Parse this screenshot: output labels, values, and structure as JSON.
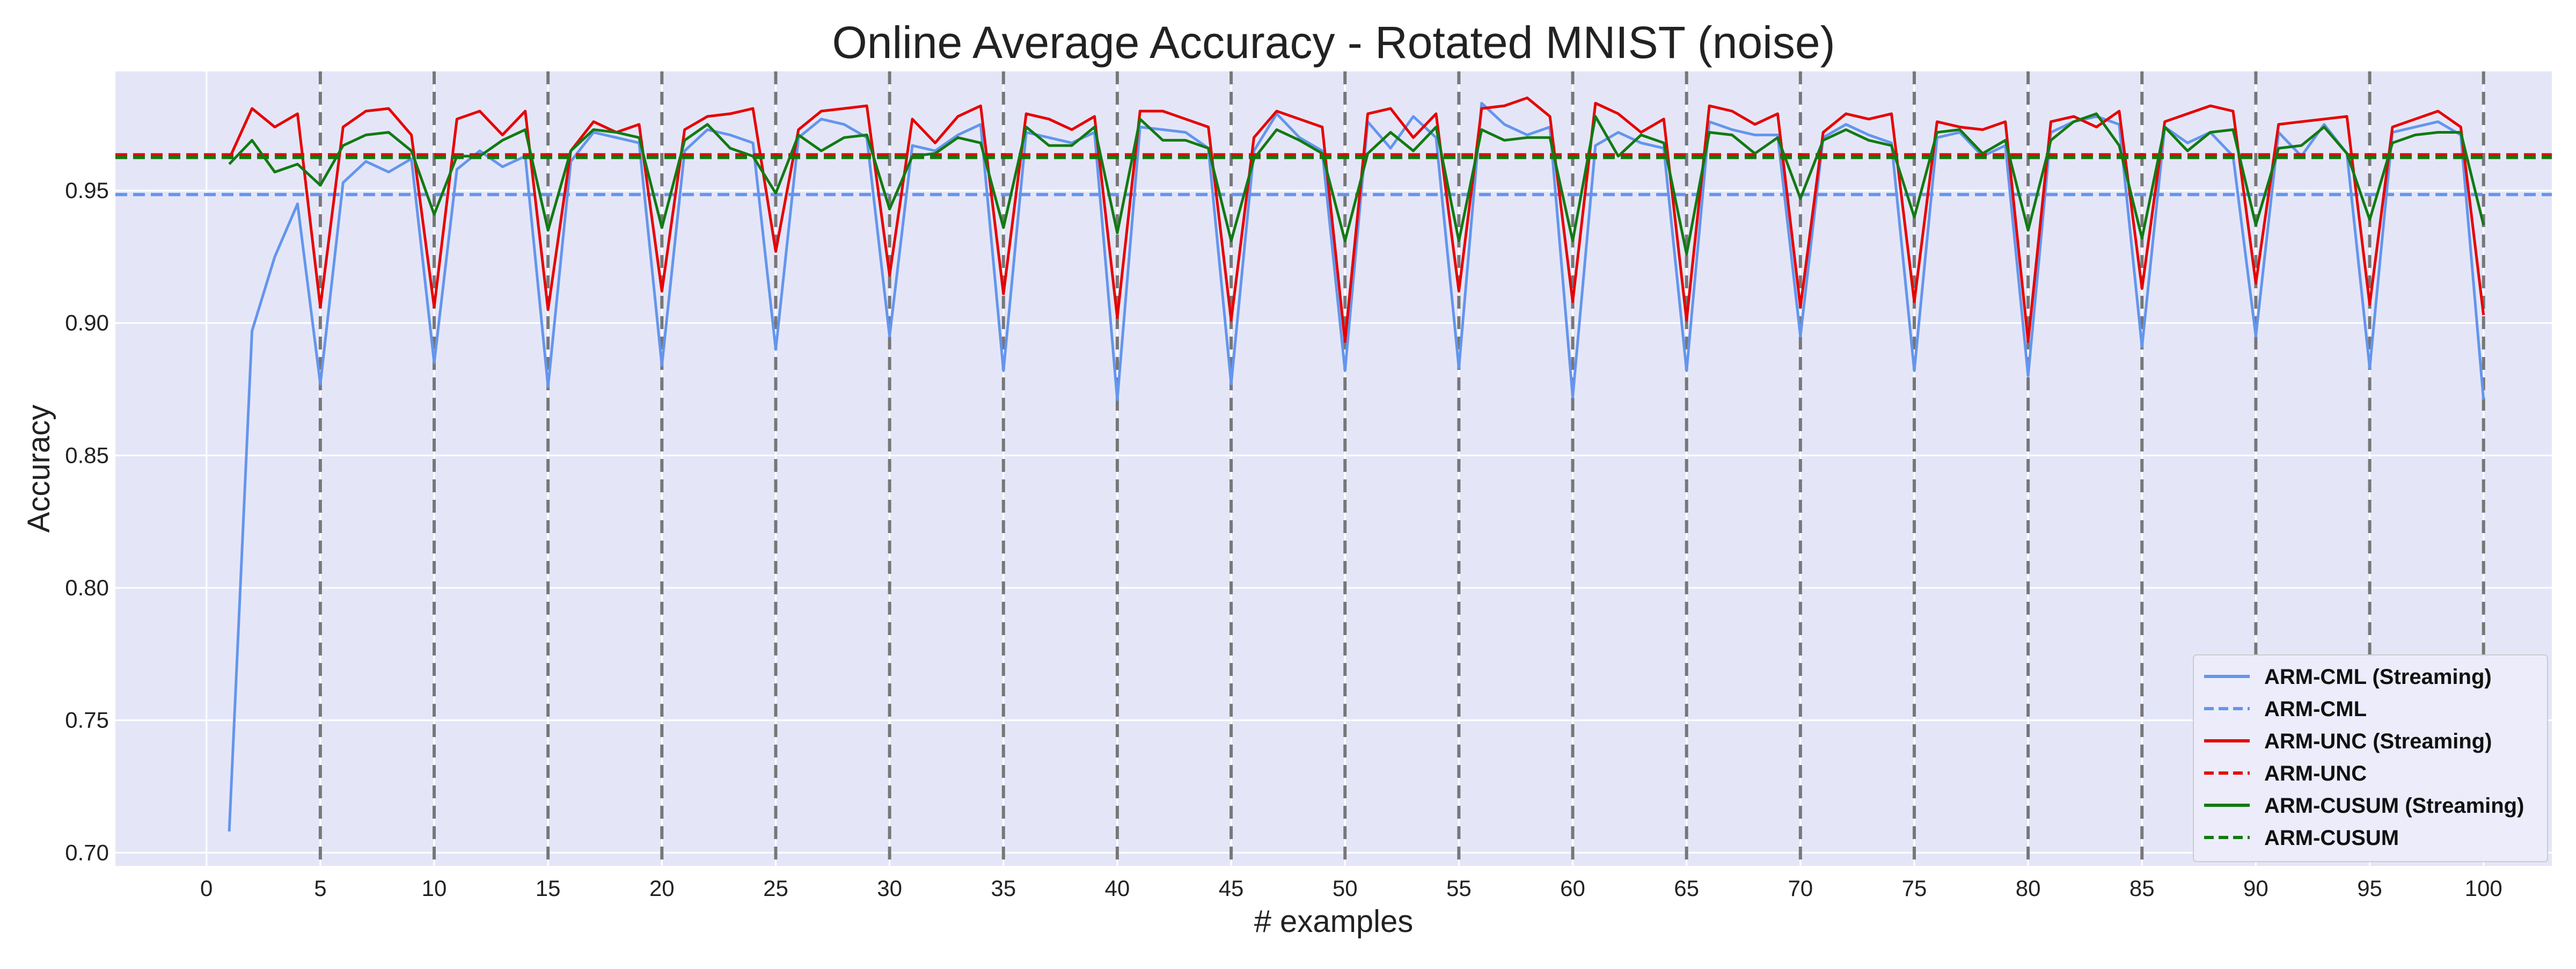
{
  "chart_data": {
    "type": "line",
    "title": "Online Average Accuracy - Rotated MNIST (noise)",
    "xlabel": "# examples",
    "ylabel": "Accuracy",
    "xlim": [
      -4,
      103
    ],
    "ylim": [
      0.695,
      0.995
    ],
    "xticks": [
      0,
      5,
      10,
      15,
      20,
      25,
      30,
      35,
      40,
      45,
      50,
      55,
      60,
      65,
      70,
      75,
      80,
      85,
      90,
      95,
      100
    ],
    "xtick_labels": [
      "0",
      "5",
      "10",
      "15",
      "20",
      "25",
      "30",
      "35",
      "40",
      "45",
      "50",
      "55",
      "60",
      "65",
      "70",
      "75",
      "80",
      "85",
      "90",
      "95",
      "100"
    ],
    "yticks": [
      0.7,
      0.75,
      0.8,
      0.85,
      0.9,
      0.95
    ],
    "ytick_labels": [
      "0.70",
      "0.75",
      "0.80",
      "0.85",
      "0.90",
      "0.95"
    ],
    "grid": true,
    "background": "#e4e6f8",
    "legend_position": "lower-right",
    "vlines": [
      5,
      10,
      15,
      20,
      25,
      30,
      35,
      40,
      45,
      50,
      55,
      60,
      65,
      70,
      75,
      80,
      85,
      90,
      95,
      100
    ],
    "vline_color": "#777777",
    "x": [
      1,
      2,
      3,
      4,
      5,
      6,
      7,
      8,
      9,
      10,
      11,
      12,
      13,
      14,
      15,
      16,
      17,
      18,
      19,
      20,
      21,
      22,
      23,
      24,
      25,
      26,
      27,
      28,
      29,
      30,
      31,
      32,
      33,
      34,
      35,
      36,
      37,
      38,
      39,
      40,
      41,
      42,
      43,
      44,
      45,
      46,
      47,
      48,
      49,
      50,
      51,
      52,
      53,
      54,
      55,
      56,
      57,
      58,
      59,
      60,
      61,
      62,
      63,
      64,
      65,
      66,
      67,
      68,
      69,
      70,
      71,
      72,
      73,
      74,
      75,
      76,
      77,
      78,
      79,
      80,
      81,
      82,
      83,
      84,
      85,
      86,
      87,
      88,
      89,
      90,
      91,
      92,
      93,
      94,
      95,
      96,
      97,
      98,
      99,
      100
    ],
    "series": [
      {
        "name": "ARM-CML (Streaming)",
        "color": "#6495ed",
        "dash": "solid",
        "values": [
          0.708,
          0.897,
          0.925,
          0.945,
          0.877,
          0.953,
          0.961,
          0.957,
          0.962,
          0.885,
          0.958,
          0.965,
          0.959,
          0.963,
          0.876,
          0.961,
          0.972,
          0.97,
          0.968,
          0.884,
          0.965,
          0.973,
          0.971,
          0.968,
          0.89,
          0.97,
          0.977,
          0.975,
          0.97,
          0.895,
          0.967,
          0.965,
          0.971,
          0.975,
          0.882,
          0.972,
          0.97,
          0.968,
          0.972,
          0.871,
          0.974,
          0.973,
          0.972,
          0.966,
          0.877,
          0.965,
          0.979,
          0.97,
          0.965,
          0.882,
          0.976,
          0.966,
          0.978,
          0.97,
          0.883,
          0.983,
          0.975,
          0.971,
          0.974,
          0.872,
          0.967,
          0.972,
          0.968,
          0.966,
          0.882,
          0.976,
          0.973,
          0.971,
          0.971,
          0.895,
          0.97,
          0.975,
          0.971,
          0.968,
          0.882,
          0.97,
          0.972,
          0.963,
          0.967,
          0.88,
          0.972,
          0.976,
          0.978,
          0.975,
          0.891,
          0.974,
          0.968,
          0.972,
          0.963,
          0.895,
          0.972,
          0.963,
          0.975,
          0.964,
          0.883,
          0.972,
          0.974,
          0.976,
          0.971,
          0.871
        ]
      },
      {
        "name": "ARM-CML",
        "color": "#6495ed",
        "dash": "dashed",
        "constant": 0.9485
      },
      {
        "name": "ARM-UNC (Streaming)",
        "color": "#e60000",
        "dash": "solid",
        "values": [
          0.962,
          0.981,
          0.974,
          0.979,
          0.906,
          0.974,
          0.98,
          0.981,
          0.971,
          0.906,
          0.977,
          0.98,
          0.971,
          0.98,
          0.905,
          0.965,
          0.976,
          0.972,
          0.975,
          0.912,
          0.973,
          0.978,
          0.979,
          0.981,
          0.927,
          0.973,
          0.98,
          0.981,
          0.982,
          0.918,
          0.977,
          0.968,
          0.978,
          0.982,
          0.911,
          0.979,
          0.977,
          0.973,
          0.978,
          0.902,
          0.98,
          0.98,
          0.977,
          0.974,
          0.901,
          0.97,
          0.98,
          0.977,
          0.974,
          0.893,
          0.979,
          0.981,
          0.97,
          0.979,
          0.912,
          0.981,
          0.982,
          0.985,
          0.978,
          0.908,
          0.983,
          0.979,
          0.972,
          0.977,
          0.901,
          0.982,
          0.98,
          0.975,
          0.979,
          0.906,
          0.972,
          0.979,
          0.977,
          0.979,
          0.908,
          0.976,
          0.974,
          0.973,
          0.976,
          0.893,
          0.976,
          0.978,
          0.974,
          0.98,
          0.913,
          0.976,
          0.979,
          0.982,
          0.98,
          0.915,
          0.975,
          0.976,
          0.977,
          0.978,
          0.907,
          0.974,
          0.977,
          0.98,
          0.974,
          0.903
        ]
      },
      {
        "name": "ARM-UNC",
        "color": "#e60000",
        "dash": "dashed",
        "constant": 0.9635
      },
      {
        "name": "ARM-CUSUM (Streaming)",
        "color": "#127a12",
        "dash": "solid",
        "values": [
          0.96,
          0.969,
          0.957,
          0.96,
          0.952,
          0.967,
          0.971,
          0.972,
          0.965,
          0.941,
          0.963,
          0.963,
          0.969,
          0.973,
          0.935,
          0.965,
          0.973,
          0.972,
          0.97,
          0.936,
          0.969,
          0.975,
          0.966,
          0.963,
          0.949,
          0.971,
          0.965,
          0.97,
          0.971,
          0.943,
          0.963,
          0.964,
          0.97,
          0.968,
          0.936,
          0.974,
          0.967,
          0.967,
          0.974,
          0.934,
          0.977,
          0.969,
          0.969,
          0.966,
          0.931,
          0.962,
          0.973,
          0.969,
          0.964,
          0.931,
          0.964,
          0.972,
          0.965,
          0.974,
          0.931,
          0.973,
          0.969,
          0.97,
          0.97,
          0.931,
          0.978,
          0.963,
          0.971,
          0.968,
          0.926,
          0.972,
          0.971,
          0.964,
          0.97,
          0.947,
          0.969,
          0.973,
          0.969,
          0.967,
          0.94,
          0.972,
          0.973,
          0.964,
          0.969,
          0.935,
          0.969,
          0.976,
          0.979,
          0.967,
          0.932,
          0.974,
          0.965,
          0.972,
          0.973,
          0.937,
          0.966,
          0.967,
          0.974,
          0.964,
          0.939,
          0.968,
          0.971,
          0.972,
          0.972,
          0.937
        ]
      },
      {
        "name": "ARM-CUSUM",
        "color": "#127a12",
        "dash": "dashed",
        "constant": 0.9625
      }
    ]
  }
}
